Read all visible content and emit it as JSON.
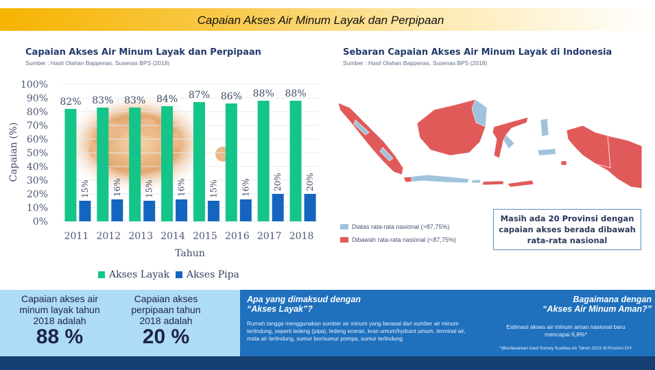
{
  "header": {
    "title": "Capaian Akses Air Minum Layak dan Perpipaan"
  },
  "left_panel": {
    "title": "Capaian Akses Air Minum Layak dan Perpipaan",
    "source": "Sumber : Hasil Olahan Bappenas, Susenas BPS (2018)"
  },
  "chart_data": {
    "type": "bar",
    "categories": [
      "2011",
      "2012",
      "2013",
      "2014",
      "2015",
      "2016",
      "2017",
      "2018"
    ],
    "series": [
      {
        "name": "Akses Layak",
        "color": "#15c488",
        "values": [
          82,
          83,
          83,
          84,
          87,
          86,
          88,
          88
        ],
        "labels": [
          "82%",
          "83%",
          "83%",
          "84%",
          "87%",
          "86%",
          "88%",
          "88%"
        ]
      },
      {
        "name": "Akses Pipa",
        "color": "#1565c0",
        "values": [
          15,
          16,
          15,
          16,
          15,
          16,
          20,
          20
        ],
        "labels": [
          "15%",
          "16%",
          "15%",
          "16%",
          "15%",
          "16%",
          "20%",
          "20%"
        ]
      }
    ],
    "ylim": [
      0,
      100
    ],
    "yticks": [
      "0%",
      "10%",
      "20%",
      "30%",
      "40%",
      "50%",
      "60%",
      "70%",
      "80%",
      "90%",
      "100%"
    ],
    "ylabel": "Capaian (%)",
    "xlabel": "Tahun",
    "legend_position": "bottom"
  },
  "right_panel": {
    "title": "Sebaran Capaian Akses Air Minum Layak di Indonesia",
    "source": "Sumber : Hasil Olahan Bappenas, Susenas BPS (2018)",
    "colors": {
      "above": "#9fc3dc",
      "below": "#e15a5a"
    },
    "legend": [
      {
        "label": "Diatas rata-rata nasional (>87,75%)",
        "color": "#9fc3dc"
      },
      {
        "label": "Dibawah rata-rata nasional (<87,75%)",
        "color": "#e15a5a"
      }
    ],
    "note": {
      "line1_pre": "Masih ada ",
      "line1_bold": "20 Provinsi",
      "line1_post": " dengan",
      "line2": "capaian akses berada dibawah",
      "line3": "rata-rata nasional"
    }
  },
  "stats": [
    {
      "line1": "Capaian akses air",
      "line2": "minum layak tahun",
      "line3": "2018 adalah",
      "value": "88 %"
    },
    {
      "line1": "Capaian akses",
      "line2": "perpipaan tahun",
      "line3": "2018 adalah",
      "value": "20 %"
    }
  ],
  "question_layak": {
    "title_line1": "Apa yang dimaksud dengan",
    "title_line2": "“Akses Layak”?",
    "text": "Rumah tangga menggunakan sumber air minum yang berasal dari sumber air minum terlindung, seperti ledeng (pipa), ledeng eceran, kran umum/hydrant umum, terminal air, mata air terlindung, sumur bor/sumur pompa, sumur terlindung"
  },
  "question_aman": {
    "title_line1": "Bagaimana dengan",
    "title_line2": "“Akses Air Minum Aman?”",
    "text_line1": "Estimasi akses air minum aman nasional baru",
    "text_line2": "mencapai 6,8%*",
    "footnote": "*)Berdasarkan hasil Survey Kualitas Air Tahun 2015 di Provinsi DIY"
  }
}
